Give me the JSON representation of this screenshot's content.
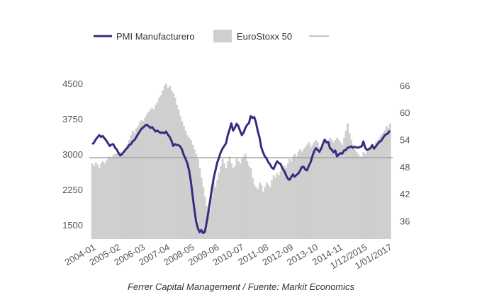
{
  "chart_data": {
    "type": "bar+line",
    "caption": "Ferrer Capital Management / Fuente: Markit Economics",
    "legend": [
      "PMI Manufacturero",
      "EuroStoxx 50",
      ""
    ],
    "left_axis": {
      "ticks": [
        1500,
        2250,
        3000,
        3750,
        4500
      ],
      "range": [
        1200,
        4650
      ]
    },
    "right_axis": {
      "ticks": [
        36,
        42,
        48,
        54,
        60,
        66
      ],
      "range": [
        32,
        68
      ]
    },
    "x_labels": [
      "2004-01",
      "2005-02",
      "2006-03",
      "2007-04",
      "2008-05",
      "2009-06",
      "2010-07",
      "2011-08",
      "2012-09",
      "2013-10",
      "2014-11",
      "1/12/2015",
      "1/01/2017"
    ],
    "reference_value": 50,
    "eurostoxx_keypoints": [
      [
        0,
        2800
      ],
      [
        6,
        2800
      ],
      [
        12,
        2950
      ],
      [
        18,
        3050
      ],
      [
        24,
        3450
      ],
      [
        30,
        3700
      ],
      [
        36,
        4000
      ],
      [
        40,
        4300
      ],
      [
        44,
        4400
      ],
      [
        48,
        4300
      ],
      [
        52,
        3950
      ],
      [
        56,
        3500
      ],
      [
        60,
        3250
      ],
      [
        64,
        2700
      ],
      [
        66,
        2100
      ],
      [
        70,
        2300
      ],
      [
        74,
        2650
      ],
      [
        78,
        2800
      ],
      [
        82,
        2700
      ],
      [
        86,
        2800
      ],
      [
        90,
        2850
      ],
      [
        94,
        2700
      ],
      [
        98,
        2500
      ],
      [
        102,
        2350
      ],
      [
        106,
        2300
      ],
      [
        110,
        2500
      ],
      [
        114,
        2650
      ],
      [
        118,
        2800
      ],
      [
        122,
        2900
      ],
      [
        126,
        3000
      ],
      [
        130,
        3150
      ],
      [
        134,
        3200
      ],
      [
        138,
        3250
      ],
      [
        142,
        3300
      ],
      [
        146,
        3100
      ],
      [
        150,
        3350
      ],
      [
        154,
        3550
      ],
      [
        158,
        3300
      ],
      [
        162,
        3100
      ],
      [
        166,
        3050
      ],
      [
        170,
        3150
      ],
      [
        174,
        3250
      ],
      [
        178,
        3350
      ],
      [
        180,
        3550
      ]
    ],
    "eurostoxx_values": [
      2800,
      2750,
      2820,
      2780,
      2700,
      2800,
      2850,
      2800,
      2870,
      2900,
      2950,
      2920,
      2980,
      3000,
      3020,
      2980,
      3050,
      3000,
      3080,
      3120,
      3200,
      3300,
      3400,
      3500,
      3450,
      3550,
      3600,
      3680,
      3720,
      3700,
      3780,
      3850,
      3900,
      3950,
      3980,
      3950,
      4050,
      4100,
      4200,
      4250,
      4350,
      4450,
      4500,
      4400,
      4450,
      4350,
      4300,
      4200,
      4050,
      3950,
      3800,
      3700,
      3600,
      3500,
      3400,
      3350,
      3300,
      3200,
      3100,
      3000,
      2900,
      2700,
      2500,
      2300,
      2100,
      1900,
      1750,
      1800,
      2100,
      2400,
      2300,
      2450,
      2600,
      2750,
      2900,
      2800,
      2700,
      2850,
      2950,
      2800,
      2700,
      2750,
      2900,
      2850,
      2800,
      2900,
      2950,
      3000,
      2850,
      2750,
      2700,
      2500,
      2350,
      2300,
      2250,
      2400,
      2350,
      2200,
      2300,
      2400,
      2350,
      2300,
      2450,
      2550,
      2500,
      2600,
      2550,
      2650,
      2700,
      2750,
      2700,
      2800,
      2900,
      2850,
      2950,
      3000,
      2950,
      3050,
      3100,
      3050,
      3100,
      3150,
      3200,
      3250,
      3150,
      3200,
      3250,
      3300,
      3250,
      3150,
      3100,
      3200,
      3300,
      3250,
      3200,
      3350,
      3300,
      3250,
      3300,
      3350,
      3300,
      3250,
      3200,
      3350,
      3500,
      3650,
      3450,
      3300,
      3200,
      3100,
      3050,
      3000,
      2950,
      2950,
      3050,
      3000,
      3050,
      3100,
      3150,
      3200,
      3150,
      3250,
      3300,
      3350,
      3400,
      3450,
      3500,
      3600,
      3550,
      3650
    ],
    "pmi_values": [
      53.0,
      53.3,
      54.0,
      54.5,
      55.0,
      54.6,
      54.8,
      54.3,
      53.8,
      53.2,
      52.6,
      52.9,
      53.0,
      52.2,
      51.8,
      51.0,
      50.5,
      50.8,
      51.3,
      51.8,
      52.2,
      52.8,
      53.0,
      53.6,
      53.9,
      54.5,
      55.2,
      55.8,
      56.4,
      56.7,
      57.1,
      57.3,
      57.0,
      56.6,
      56.8,
      56.3,
      55.8,
      56.0,
      55.7,
      55.5,
      55.6,
      55.4,
      55.8,
      55.1,
      54.6,
      53.8,
      52.6,
      53.0,
      52.8,
      52.8,
      52.5,
      51.8,
      50.6,
      49.8,
      48.8,
      47.2,
      44.9,
      41.7,
      38.6,
      35.9,
      34.4,
      33.5,
      34.0,
      33.3,
      33.6,
      35.7,
      38.0,
      40.6,
      43.2,
      45.5,
      47.2,
      48.9,
      50.0,
      51.2,
      52.0,
      52.6,
      53.2,
      55.0,
      56.2,
      57.6,
      56.0,
      56.6,
      57.5,
      57.0,
      55.9,
      55.0,
      55.6,
      56.6,
      57.3,
      57.6,
      59.2,
      58.8,
      59.0,
      57.8,
      55.9,
      54.5,
      52.3,
      51.2,
      50.3,
      49.8,
      49.0,
      48.5,
      47.8,
      47.5,
      48.4,
      49.2,
      48.8,
      48.6,
      47.6,
      47.1,
      46.2,
      45.4,
      45.1,
      45.7,
      46.3,
      45.8,
      46.2,
      46.5,
      47.1,
      47.9,
      48.0,
      47.4,
      47.2,
      48.2,
      49.0,
      50.3,
      51.4,
      52.1,
      51.7,
      51.3,
      52.0,
      53.1,
      54.0,
      53.4,
      53.5,
      52.1,
      51.8,
      51.2,
      51.6,
      50.3,
      50.7,
      51.0,
      50.9,
      51.6,
      51.7,
      52.2,
      52.3,
      52.5,
      52.2,
      52.4,
      52.3,
      52.2,
      52.4,
      52.5,
      53.6,
      52.2,
      51.7,
      51.9,
      52.1,
      52.8,
      52.0,
      52.5,
      53.0,
      53.5,
      53.7,
      54.3,
      54.9,
      55.2,
      55.4,
      56.0
    ]
  }
}
